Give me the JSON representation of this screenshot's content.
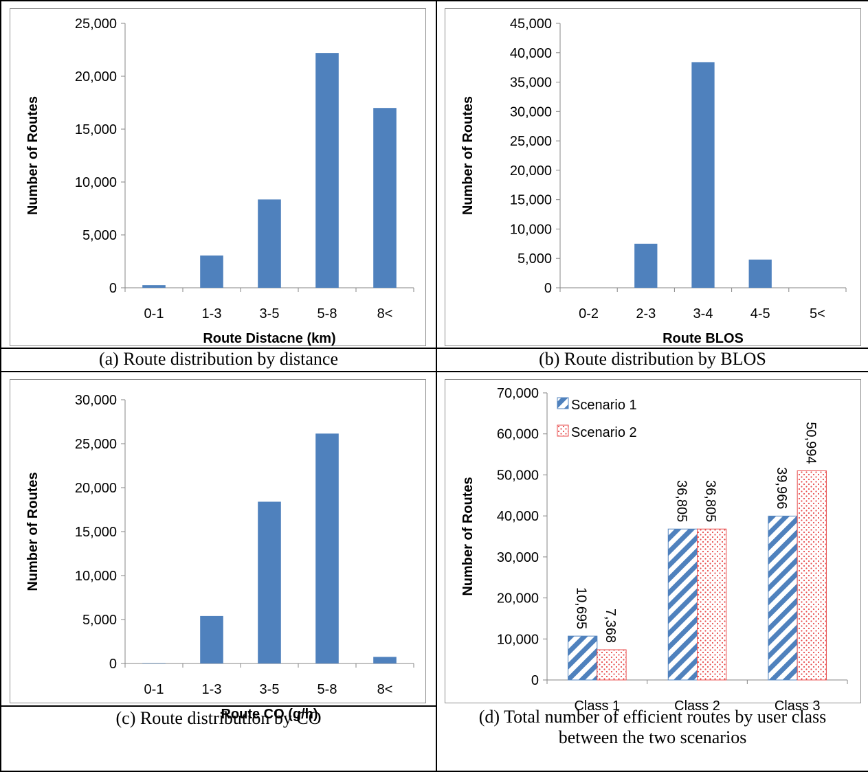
{
  "panels": [
    {
      "id": "a",
      "caption": "(a) Route distribution by distance",
      "chart_data": {
        "type": "bar",
        "categories": [
          "0-1",
          "1-3",
          "3-5",
          "5-8",
          "8<"
        ],
        "values": [
          250,
          3050,
          8350,
          22200,
          17000
        ],
        "xlabel": "Route Distacne (km)",
        "ylabel": "Number of Routes",
        "ylim": [
          0,
          25000
        ],
        "yticks": [
          "0",
          "5,000",
          "10,000",
          "15,000",
          "20,000",
          "25,000"
        ],
        "grid": false,
        "color": "#4f81bd"
      }
    },
    {
      "id": "b",
      "caption": "(b) Route distribution by BLOS",
      "chart_data": {
        "type": "bar",
        "categories": [
          "0-2",
          "2-3",
          "3-4",
          "4-5",
          "5<"
        ],
        "values": [
          0,
          7500,
          38400,
          4800,
          0
        ],
        "xlabel": "Route BLOS",
        "ylabel": "Number of Routes",
        "ylim": [
          0,
          45000
        ],
        "yticks": [
          "0",
          "5,000",
          "10,000",
          "15,000",
          "20,000",
          "25,000",
          "30,000",
          "35,000",
          "40,000",
          "45,000"
        ],
        "grid": false,
        "color": "#4f81bd"
      }
    },
    {
      "id": "c",
      "caption": "(c) Route distribution by CO",
      "chart_data": {
        "type": "bar",
        "categories": [
          "0-1",
          "1-3",
          "3-5",
          "5-8",
          "8<"
        ],
        "values": [
          50,
          5400,
          18400,
          26150,
          750
        ],
        "xlabel": "Route CO (g/h)",
        "ylabel": "Number of Routes",
        "ylim": [
          0,
          30000
        ],
        "yticks": [
          "0",
          "5,000",
          "10,000",
          "15,000",
          "20,000",
          "25,000",
          "30,000"
        ],
        "grid": false,
        "color": "#4f81bd"
      }
    },
    {
      "id": "d",
      "caption": "(d) Total number of efficient routes by user class between the two scenarios",
      "chart_data": {
        "type": "bar",
        "categories": [
          "Class 1",
          "Class 2",
          "Class 3"
        ],
        "series": [
          {
            "name": "Scenario 1",
            "values": [
              10695,
              36805,
              39966
            ],
            "labels": [
              "10,695",
              "36,805",
              "39,966"
            ],
            "pattern": "diagonal-stripes",
            "color": "#4f81bd"
          },
          {
            "name": "Scenario 2",
            "values": [
              7368,
              36805,
              50994
            ],
            "labels": [
              "7,368",
              "36,805",
              "50,994"
            ],
            "pattern": "red-dots",
            "color": "#e84c4c"
          }
        ],
        "xlabel": "",
        "ylabel": "Number of Routes",
        "ylim": [
          0,
          70000
        ],
        "yticks": [
          "0",
          "10,000",
          "20,000",
          "30,000",
          "40,000",
          "50,000",
          "60,000",
          "70,000"
        ],
        "grid": false,
        "legend": "top-left"
      }
    }
  ]
}
